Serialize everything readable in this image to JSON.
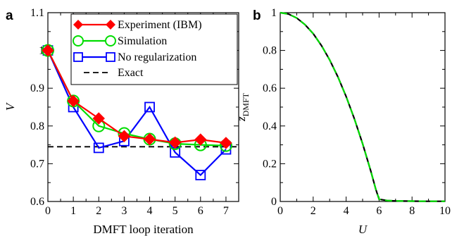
{
  "chart_data": [
    {
      "panel": "a",
      "type": "line",
      "xlabel": "DMFT loop iteration",
      "ylabel": "V",
      "xlim": [
        0,
        7.5
      ],
      "ylim": [
        0.6,
        1.1
      ],
      "xticks": [
        "0",
        "1",
        "2",
        "3",
        "4",
        "5",
        "6",
        "7"
      ],
      "yticks": [
        "0.6",
        "0.7",
        "0.8",
        "0.9",
        "1",
        "1.1"
      ],
      "legend_position": "top-right",
      "series": [
        {
          "name": "Experiment (IBM)",
          "color": "#ff0000",
          "marker": "diamond",
          "x": [
            0,
            1,
            2,
            3,
            4,
            5,
            6,
            7
          ],
          "y": [
            1.0,
            0.866,
            0.82,
            0.773,
            0.765,
            0.756,
            0.764,
            0.755
          ]
        },
        {
          "name": "Simulation",
          "color": "#00dd00",
          "marker": "circle",
          "x": [
            0,
            1,
            2,
            3,
            4,
            5,
            6,
            7
          ],
          "y": [
            1.0,
            0.866,
            0.8,
            0.78,
            0.765,
            0.753,
            0.75,
            0.748
          ]
        },
        {
          "name": "No regularization",
          "color": "#0000ff",
          "marker": "square",
          "x": [
            0,
            1,
            2,
            3,
            4,
            5,
            6,
            7
          ],
          "y": [
            1.0,
            0.85,
            0.742,
            0.76,
            0.85,
            0.73,
            0.67,
            0.738
          ]
        },
        {
          "name": "Exact",
          "color": "#000000",
          "style": "dashed",
          "x": [
            0,
            7.5
          ],
          "y": [
            0.745,
            0.745
          ]
        }
      ]
    },
    {
      "panel": "b",
      "type": "line",
      "xlabel": "U",
      "ylabel": "z",
      "ylabel_sub": "DMFT",
      "xlim": [
        0,
        10
      ],
      "ylim": [
        0,
        1
      ],
      "xticks": [
        "0",
        "2",
        "4",
        "6",
        "8",
        "10"
      ],
      "yticks": [
        "0",
        "0.2",
        "0.4",
        "0.6",
        "0.8",
        "1"
      ],
      "series": [
        {
          "color": "#000000",
          "style": "solid",
          "x": [
            0,
            0.5,
            1,
            1.5,
            2,
            2.5,
            3,
            3.5,
            4,
            4.5,
            5,
            5.5,
            5.8,
            6,
            6.5,
            7,
            8,
            9,
            10
          ],
          "y": [
            1,
            0.993,
            0.972,
            0.937,
            0.889,
            0.826,
            0.75,
            0.66,
            0.556,
            0.438,
            0.306,
            0.16,
            0.065,
            0.012,
            0.005,
            0.003,
            0.002,
            0.001,
            0.001
          ]
        },
        {
          "color": "#00dd00",
          "style": "dashed",
          "x": [
            0,
            0.5,
            1,
            1.5,
            2,
            2.5,
            3,
            3.5,
            4,
            4.5,
            5,
            5.5,
            5.8,
            6,
            6.5,
            7,
            8,
            9,
            10
          ],
          "y": [
            1,
            0.993,
            0.972,
            0.937,
            0.889,
            0.826,
            0.75,
            0.66,
            0.556,
            0.438,
            0.306,
            0.16,
            0.065,
            0.012,
            0.005,
            0.003,
            0.002,
            0.001,
            0.001
          ]
        }
      ]
    }
  ]
}
